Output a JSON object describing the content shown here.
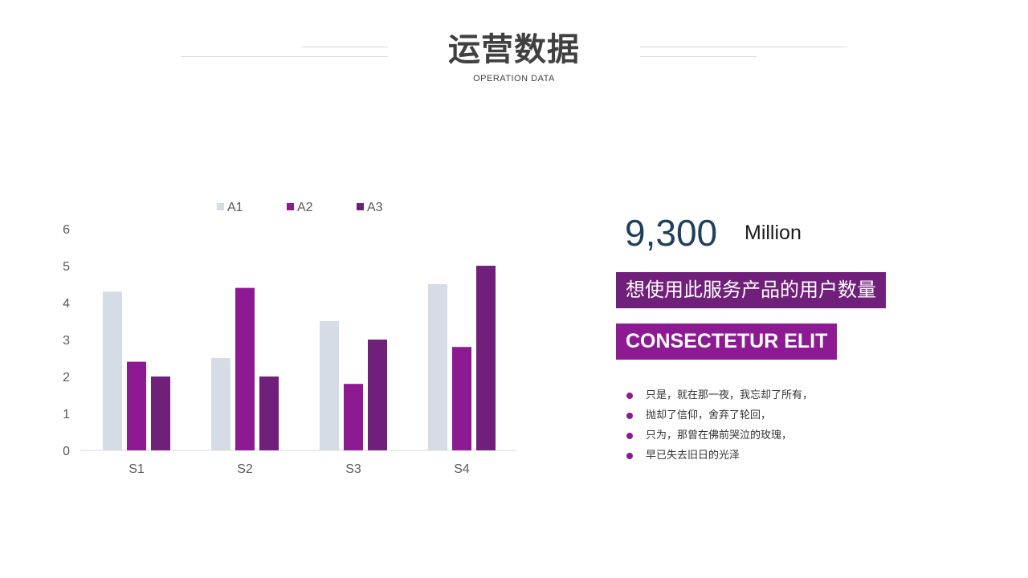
{
  "header": {
    "title": "运营数据",
    "subtitle": "OPERATION DATA"
  },
  "stat": {
    "number": "9,300",
    "unit": "Million",
    "banner_primary": "想使用此服务产品的用户数量",
    "banner_secondary": "CONSECTETUR ELIT"
  },
  "bullets": [
    "只是，就在那一夜，我忘却了所有，",
    "抛却了信仰，舍弃了轮回，",
    "只为，那曾在佛前哭泣的玫瑰，",
    "早已失去旧日的光泽"
  ],
  "colors": {
    "A1": "#d6dce5",
    "A2": "#8e1a93",
    "A3": "#70207a",
    "number": "#1f3f5c",
    "bullet_dot": "#8e1a93"
  },
  "chart_data": {
    "type": "bar",
    "categories": [
      "S1",
      "S2",
      "S3",
      "S4"
    ],
    "series": [
      {
        "name": "A1",
        "values": [
          4.3,
          2.5,
          3.5,
          4.5
        ]
      },
      {
        "name": "A2",
        "values": [
          2.4,
          4.4,
          1.8,
          2.8
        ]
      },
      {
        "name": "A3",
        "values": [
          2.0,
          2.0,
          3.0,
          5.0
        ]
      }
    ],
    "yticks": [
      "0",
      "1",
      "2",
      "3",
      "4",
      "5",
      "6"
    ],
    "ylim": [
      0,
      6
    ],
    "grid": false,
    "legend_position": "top"
  }
}
